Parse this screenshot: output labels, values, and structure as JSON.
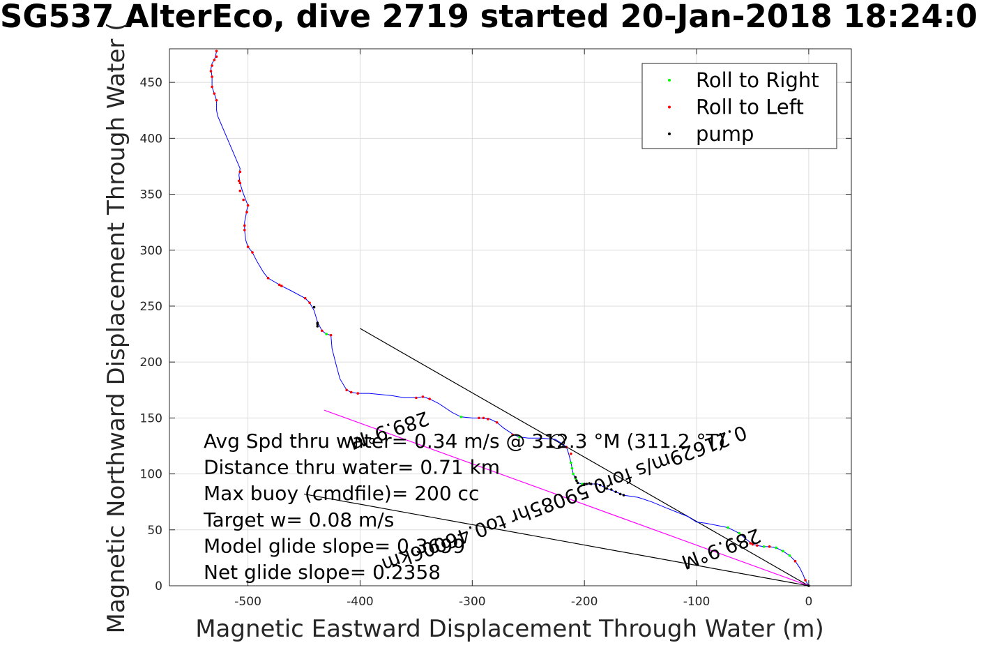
{
  "chart_data": {
    "type": "line",
    "title": "SG537 AlterEco, dive 2719 started 20-Jan-2018 18:24:0",
    "xlabel": "Magnetic Eastward Displacement Through Water (m)",
    "ylabel": "Magnetic Northward Displacement Through Water (",
    "xlim": [
      -570,
      38
    ],
    "ylim": [
      0,
      480
    ],
    "x_ticks": [
      -500,
      -400,
      -300,
      -200,
      -100,
      0
    ],
    "y_ticks": [
      0,
      50,
      100,
      150,
      200,
      250,
      300,
      350,
      400,
      450
    ],
    "x_tick_labels": [
      "-500",
      "-400",
      "-300",
      "-200",
      "-100",
      "0"
    ],
    "y_tick_labels": [
      "0",
      "50",
      "100",
      "150",
      "200",
      "250",
      "300",
      "350",
      "400",
      "450"
    ],
    "grid": true,
    "legend": {
      "placement": "top-right",
      "entries": [
        {
          "label": "Roll to Right",
          "color": "#00ff00"
        },
        {
          "label": "Roll to Left",
          "color": "#ff0000"
        },
        {
          "label": "pump",
          "color": "#000000"
        }
      ]
    },
    "track": {
      "color": "#0000ff",
      "points": [
        [
          0,
          0
        ],
        [
          -3,
          5
        ],
        [
          -5,
          10
        ],
        [
          -8,
          16
        ],
        [
          -12,
          22
        ],
        [
          -17,
          27
        ],
        [
          -23,
          31
        ],
        [
          -29,
          34
        ],
        [
          -35,
          35
        ],
        [
          -40,
          35
        ],
        [
          -46,
          36
        ],
        [
          -50,
          37
        ],
        [
          -55,
          41
        ],
        [
          -62,
          47
        ],
        [
          -72,
          52
        ],
        [
          -82,
          54
        ],
        [
          -92,
          56
        ],
        [
          -100,
          57
        ],
        [
          -108,
          62
        ],
        [
          -118,
          66
        ],
        [
          -128,
          70
        ],
        [
          -140,
          75
        ],
        [
          -152,
          79
        ],
        [
          -165,
          81
        ],
        [
          -172,
          84
        ],
        [
          -180,
          87
        ],
        [
          -188,
          91
        ],
        [
          -196,
          91
        ],
        [
          -202,
          91
        ],
        [
          -206,
          92
        ],
        [
          -208,
          96
        ],
        [
          -210,
          100
        ],
        [
          -211,
          105
        ],
        [
          -212,
          110
        ],
        [
          -214,
          118
        ],
        [
          -216,
          124
        ],
        [
          -220,
          127
        ],
        [
          -226,
          131
        ],
        [
          -240,
          132
        ],
        [
          -250,
          132
        ],
        [
          -258,
          133
        ],
        [
          -263,
          135
        ],
        [
          -272,
          141
        ],
        [
          -278,
          146
        ],
        [
          -284,
          149
        ],
        [
          -292,
          150
        ],
        [
          -300,
          150
        ],
        [
          -310,
          151
        ],
        [
          -318,
          155
        ],
        [
          -330,
          163
        ],
        [
          -338,
          167
        ],
        [
          -344,
          169
        ],
        [
          -350,
          168
        ],
        [
          -360,
          168
        ],
        [
          -372,
          170
        ],
        [
          -392,
          172
        ],
        [
          -402,
          172
        ],
        [
          -408,
          173
        ],
        [
          -412,
          175
        ],
        [
          -418,
          185
        ],
        [
          -422,
          200
        ],
        [
          -425,
          212
        ],
        [
          -426,
          224
        ],
        [
          -430,
          225
        ],
        [
          -434,
          228
        ],
        [
          -436,
          232
        ],
        [
          -438,
          236
        ],
        [
          -441,
          246
        ],
        [
          -445,
          253
        ],
        [
          -449,
          257
        ],
        [
          -462,
          264
        ],
        [
          -470,
          268
        ],
        [
          -482,
          275
        ],
        [
          -486,
          280
        ],
        [
          -492,
          290
        ],
        [
          -496,
          298
        ],
        [
          -500,
          303
        ],
        [
          -502,
          309
        ],
        [
          -503,
          318
        ],
        [
          -503,
          325
        ],
        [
          -502,
          330
        ],
        [
          -501,
          336
        ],
        [
          -500,
          340
        ],
        [
          -502,
          345
        ],
        [
          -505,
          353
        ],
        [
          -507,
          360
        ],
        [
          -508,
          367
        ],
        [
          -507,
          373
        ],
        [
          -527,
          420
        ],
        [
          -528,
          425
        ],
        [
          -528,
          434
        ],
        [
          -530,
          440
        ],
        [
          -532,
          446
        ],
        [
          -532,
          455
        ],
        [
          -533,
          462
        ],
        [
          -532,
          467
        ],
        [
          -530,
          470
        ],
        [
          -529,
          473
        ],
        [
          -528,
          478
        ]
      ]
    },
    "roll_right_ranges": [
      [
        -1,
        -1
      ],
      [
        -2,
        -1
      ],
      [
        -30,
        -15
      ],
      [
        -40,
        -20
      ],
      [
        -80,
        -62
      ],
      [
        -212,
        -200
      ],
      [
        -260,
        -258
      ],
      [
        -310,
        -306
      ],
      [
        -432,
        -430
      ]
    ],
    "roll_left_points": [
      [
        -3,
        5
      ],
      [
        -12,
        22
      ],
      [
        -35,
        35
      ],
      [
        -46,
        36
      ],
      [
        -50,
        37
      ],
      [
        -52,
        38
      ],
      [
        -216,
        124
      ],
      [
        -212,
        118
      ],
      [
        -264,
        135
      ],
      [
        -286,
        149
      ],
      [
        -290,
        150
      ],
      [
        -294,
        150
      ],
      [
        -278,
        146
      ],
      [
        -338,
        167
      ],
      [
        -344,
        169
      ],
      [
        -350,
        168
      ],
      [
        -402,
        172
      ],
      [
        -408,
        173
      ],
      [
        -412,
        175
      ],
      [
        -426,
        224
      ],
      [
        -434,
        228
      ],
      [
        -445,
        253
      ],
      [
        -449,
        257
      ],
      [
        -470,
        268
      ],
      [
        -472,
        269
      ],
      [
        -482,
        275
      ],
      [
        -496,
        298
      ],
      [
        -500,
        303
      ],
      [
        -503,
        318
      ],
      [
        -503,
        322
      ],
      [
        -501,
        334
      ],
      [
        -500,
        340
      ],
      [
        -504,
        345
      ],
      [
        -507,
        353
      ],
      [
        -507,
        360
      ],
      [
        -508,
        362
      ],
      [
        -507,
        370
      ],
      [
        -528,
        434
      ],
      [
        -530,
        440
      ],
      [
        -532,
        446
      ],
      [
        -532,
        455
      ],
      [
        -533,
        460
      ],
      [
        -532,
        465
      ],
      [
        -530,
        470
      ],
      [
        -528,
        473
      ],
      [
        -528,
        478
      ]
    ],
    "pump_points": [
      [
        -186,
        90
      ],
      [
        -190,
        91
      ],
      [
        -194,
        91
      ],
      [
        -198,
        91
      ],
      [
        -200,
        91
      ],
      [
        -206,
        92
      ],
      [
        -207,
        94
      ],
      [
        -208,
        97
      ],
      [
        -180,
        87
      ],
      [
        -176,
        86
      ],
      [
        -172,
        84
      ],
      [
        -168,
        82
      ],
      [
        -165,
        81
      ],
      [
        -438,
        232
      ],
      [
        -438,
        234
      ],
      [
        -438,
        235
      ],
      [
        -441,
        249
      ],
      [
        0,
        0
      ]
    ],
    "direction_lines": [
      {
        "label": "289.9°M",
        "from": [
          0,
          0
        ],
        "to": [
          -400,
          230
        ],
        "color": "#000000"
      },
      {
        "label": "0.21629m/s for0.59085hr to0.46006km",
        "from": [
          0,
          0
        ],
        "to": [
          -432,
          157
        ],
        "color": "#ff00ff"
      },
      {
        "label": "",
        "from": [
          0,
          0
        ],
        "to": [
          -450,
          82
        ],
        "color": "#000000"
      }
    ],
    "rotated_annotations": [
      {
        "text": "289.9°M",
        "angle": 161.8
      },
      {
        "text": "0.21629m/s for0.59085hr to0.46006km",
        "angle": 159.7
      },
      {
        "text": "289.9°M",
        "angle": 159.7
      }
    ],
    "annotations": [
      "Avg Spd thru water= 0.34 m/s @ 312.3 °M (311.2 °T)",
      "Distance thru water= 0.71 km",
      "Max buoy (cmdfile)= 200 cc",
      "Target w= 0.08 m/s",
      "Model glide slope= 0.3699",
      "Net glide slope= 0.2358"
    ],
    "circle_marker": {
      "x": -224,
      "y": 129
    }
  }
}
